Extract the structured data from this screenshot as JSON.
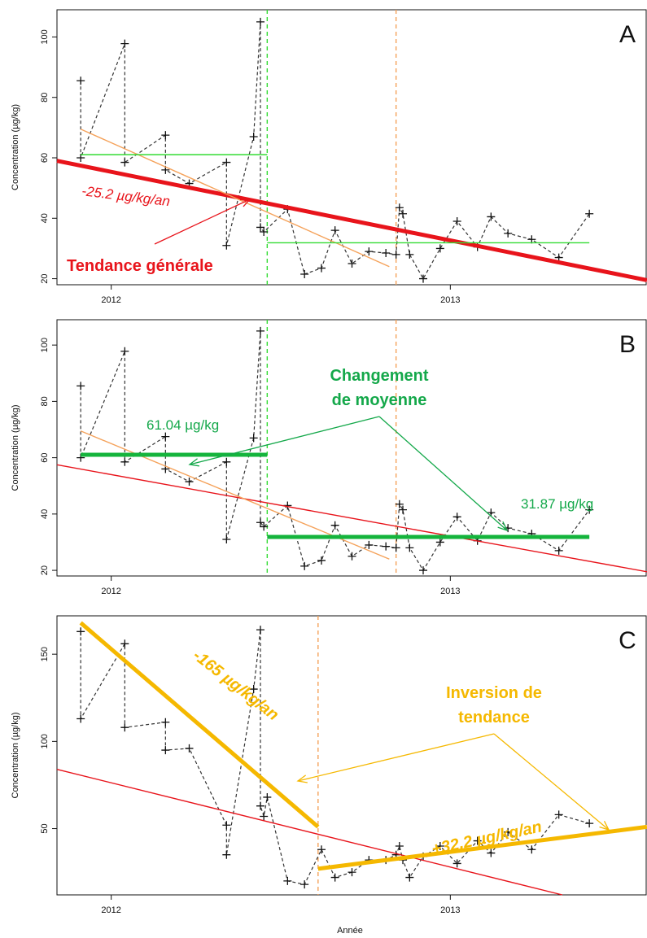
{
  "chart_data": [
    {
      "type": "line",
      "panel_label": "A",
      "ylabel": "Concentration (µg/kg)",
      "xlabel": "",
      "x_ticks": [
        "2012",
        "2013"
      ],
      "y_ticks": [
        20,
        40,
        60,
        80,
        100
      ],
      "ylim": [
        18,
        109
      ],
      "annotations": [
        {
          "text": "-25.2 µg/kg/an",
          "color": "#e8141b",
          "style": "italic"
        },
        {
          "text": "Tendance générale",
          "color": "#e8141b",
          "style": "bold"
        }
      ],
      "series": [
        {
          "kind": "observations",
          "color": "#333333",
          "x": [
            2011.91,
            2011.91,
            2012.04,
            2012.04,
            2012.16,
            2012.16,
            2012.23,
            2012.34,
            2012.34,
            2012.42,
            2012.44,
            2012.44,
            2012.45,
            2012.52,
            2012.57,
            2012.62,
            2012.66,
            2012.71,
            2012.76,
            2012.81,
            2012.84,
            2012.85,
            2012.86,
            2012.88,
            2012.92,
            2012.97,
            2013.02,
            2013.08,
            2013.12,
            2013.17,
            2013.24,
            2013.32,
            2013.41
          ],
          "y": [
            85.5,
            60,
            97.8,
            58.5,
            67.5,
            56,
            51.5,
            58.5,
            31,
            67,
            105,
            37,
            35.5,
            43,
            21.5,
            23.5,
            36,
            25,
            29,
            28.5,
            28,
            43.5,
            41.5,
            28,
            20,
            30,
            39,
            30.5,
            40.5,
            35,
            33,
            27,
            41.5
          ]
        },
        {
          "kind": "trend",
          "name": "general trend",
          "color": "#e8141b",
          "x": [
            2011.84,
            2013.58
          ],
          "y": [
            59,
            19.5
          ]
        },
        {
          "kind": "trend",
          "name": "segment 1 trend",
          "color": "#f5a25a",
          "x": [
            2011.91,
            2012.82
          ],
          "y": [
            69.5,
            24
          ]
        },
        {
          "kind": "mean",
          "name": "mean before break",
          "color": "#32dc32",
          "x": [
            2011.91,
            2012.46
          ],
          "y": [
            61.04,
            61.04
          ]
        },
        {
          "kind": "mean",
          "name": "mean after break",
          "color": "#32dc32",
          "x": [
            2012.46,
            2013.41
          ],
          "y": [
            31.87,
            31.87
          ]
        }
      ],
      "breaks": [
        {
          "x": 2012.46,
          "color": "#32dc32"
        },
        {
          "x": 2012.84,
          "color": "#f5a25a"
        }
      ]
    },
    {
      "type": "line",
      "panel_label": "B",
      "ylabel": "Concentration (µg/kg)",
      "xlabel": "",
      "x_ticks": [
        "2012",
        "2013"
      ],
      "y_ticks": [
        20,
        40,
        60,
        80,
        100
      ],
      "ylim": [
        18,
        109
      ],
      "annotations": [
        {
          "text": "Changement de moyenne",
          "color": "#14a84a",
          "style": "bold"
        },
        {
          "text": "61.04 µg/kg",
          "color": "#14a84a",
          "style": "normal"
        },
        {
          "text": "31.87 µg/kg",
          "color": "#14a84a",
          "style": "normal"
        }
      ],
      "series": [
        {
          "kind": "observations",
          "color": "#333333",
          "x": [
            2011.91,
            2011.91,
            2012.04,
            2012.04,
            2012.16,
            2012.16,
            2012.23,
            2012.34,
            2012.34,
            2012.42,
            2012.44,
            2012.44,
            2012.45,
            2012.52,
            2012.57,
            2012.62,
            2012.66,
            2012.71,
            2012.76,
            2012.81,
            2012.84,
            2012.85,
            2012.86,
            2012.88,
            2012.92,
            2012.97,
            2013.02,
            2013.08,
            2013.12,
            2013.17,
            2013.24,
            2013.32,
            2013.41
          ],
          "y": [
            85.5,
            60,
            97.8,
            58.5,
            67.5,
            56,
            51.5,
            58.5,
            31,
            67,
            105,
            37,
            35.5,
            43,
            21.5,
            23.5,
            36,
            25,
            29,
            28.5,
            28,
            43.5,
            41.5,
            28,
            20,
            30,
            39,
            30.5,
            40.5,
            35,
            33,
            27,
            41.5
          ]
        },
        {
          "kind": "trend",
          "name": "general trend",
          "color": "#e8141b",
          "x": [
            2011.84,
            2013.58
          ],
          "y": [
            57.5,
            19.5
          ]
        },
        {
          "kind": "trend",
          "name": "segment 1 trend",
          "color": "#f5a25a",
          "x": [
            2011.91,
            2012.82
          ],
          "y": [
            69.5,
            24
          ]
        },
        {
          "kind": "mean",
          "name": "mean before break",
          "color": "#14b43c",
          "x": [
            2011.91,
            2012.46
          ],
          "y": [
            61.04,
            61.04
          ]
        },
        {
          "kind": "mean",
          "name": "mean after break",
          "color": "#14b43c",
          "x": [
            2012.46,
            2013.41
          ],
          "y": [
            31.87,
            31.87
          ]
        }
      ],
      "breaks": [
        {
          "x": 2012.46,
          "color": "#32dc32"
        },
        {
          "x": 2012.84,
          "color": "#f5a25a"
        }
      ]
    },
    {
      "type": "line",
      "panel_label": "C",
      "ylabel": "Concentration (µg/kg)",
      "xlabel": "Année",
      "x_ticks": [
        "2012",
        "2013"
      ],
      "y_ticks": [
        50,
        100,
        150
      ],
      "ylim": [
        12,
        172
      ],
      "annotations": [
        {
          "text": "-165 µg/kg/an",
          "color": "#f5b800",
          "style": "bold italic"
        },
        {
          "text": "Inversion de tendance",
          "color": "#f5b800",
          "style": "bold"
        },
        {
          "text": "+32.2 µg/kg/an",
          "color": "#f5b800",
          "style": "bold italic"
        }
      ],
      "series": [
        {
          "kind": "observations",
          "color": "#333333",
          "x": [
            2011.91,
            2011.91,
            2012.04,
            2012.04,
            2012.16,
            2012.16,
            2012.23,
            2012.34,
            2012.34,
            2012.42,
            2012.44,
            2012.44,
            2012.45,
            2012.46,
            2012.52,
            2012.57,
            2012.62,
            2012.66,
            2012.71,
            2012.76,
            2012.81,
            2012.84,
            2012.85,
            2012.86,
            2012.88,
            2012.92,
            2012.97,
            2013.02,
            2013.08,
            2013.12,
            2013.17,
            2013.24,
            2013.32,
            2013.41
          ],
          "y": [
            163,
            113,
            156,
            108,
            111,
            95,
            96,
            52,
            35,
            130,
            164,
            63,
            57,
            68,
            20,
            18,
            38,
            22,
            25,
            32,
            32,
            35,
            40,
            32,
            22,
            34,
            40,
            30,
            43,
            36,
            48,
            38,
            58,
            53
          ]
        },
        {
          "kind": "trend",
          "name": "general trend",
          "color": "#e8141b",
          "x": [
            2011.84,
            2013.33
          ],
          "y": [
            84,
            12
          ]
        },
        {
          "kind": "trend",
          "name": "segment 1 trend",
          "color": "#f5b800",
          "x": [
            2011.91,
            2012.61
          ],
          "y": [
            168,
            51
          ]
        },
        {
          "kind": "trend",
          "name": "segment 2 trend",
          "color": "#f5b800",
          "x": [
            2012.61,
            2013.58
          ],
          "y": [
            27,
            51
          ]
        }
      ],
      "breaks": [
        {
          "x": 2012.61,
          "color": "#f5a25a"
        }
      ]
    }
  ]
}
